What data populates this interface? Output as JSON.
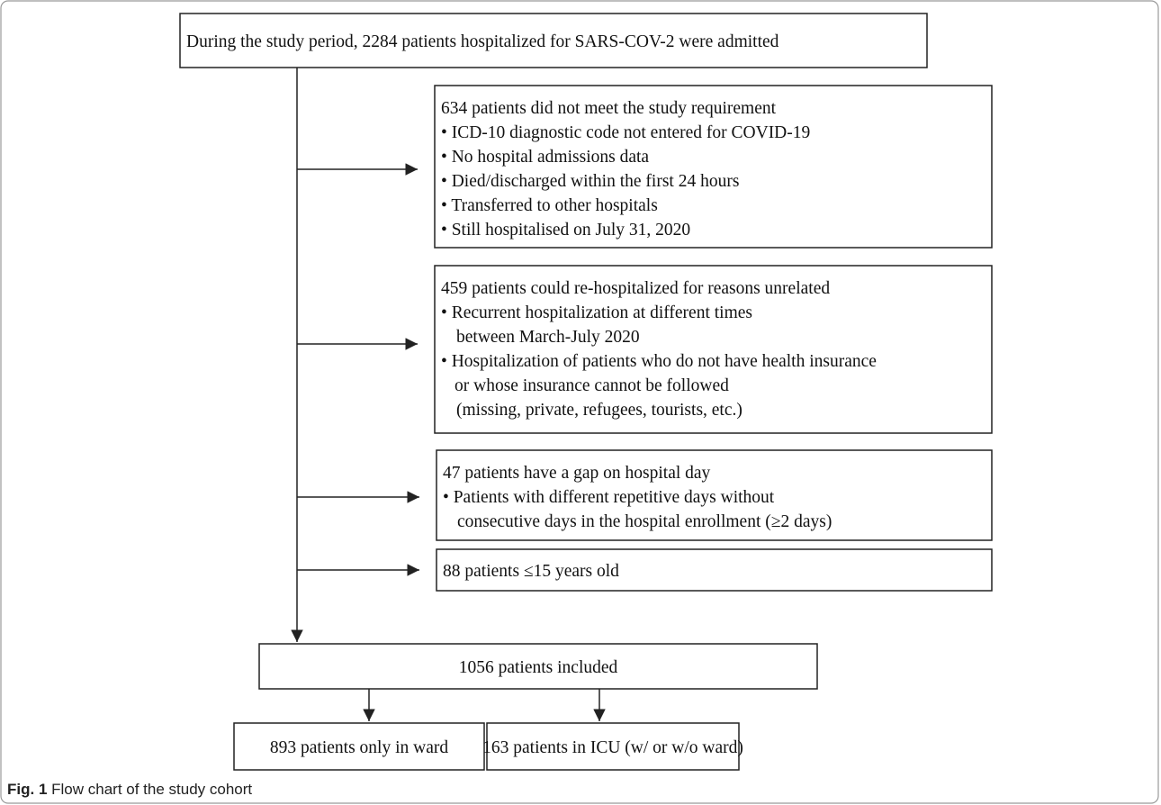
{
  "nodes": [
    {
      "lines": [
        "During the study period, 2284 patients hospitalized for SARS-COV-2 were admitted"
      ]
    },
    {
      "lines": [
        "634 patients did not meet the study requirement",
        "• ICD-10 diagnostic code not entered for COVID-19",
        "• No hospital admissions data",
        "• Died/discharged within the first 24 hours",
        "• Transferred to other hospitals",
        "• Still hospitalised on July 31, 2020"
      ]
    },
    {
      "lines": [
        "459 patients could re-hospitalized for reasons unrelated",
        "• Recurrent hospitalization at different times",
        "between March-July 2020",
        "• Hospitalization of patients who do not have health insurance",
        "or whose insurance cannot be followed",
        "(missing, private, refugees, tourists, etc.)"
      ]
    },
    {
      "lines": [
        "47 patients have a gap on hospital day",
        "• Patients with different repetitive days without",
        "consecutive days  in the hospital enrollment (≥2 days)"
      ]
    },
    {
      "lines": [
        "88 patients ≤15 years old"
      ]
    },
    {
      "lines": [
        "1056 patients included"
      ]
    },
    {
      "lines": [
        "893 patients only in ward"
      ]
    },
    {
      "lines": [
        "163 patients in ICU (w/ or w/o ward)"
      ]
    }
  ],
  "caption": {
    "label": "Fig. 1",
    "text": "Flow chart of the study cohort"
  }
}
